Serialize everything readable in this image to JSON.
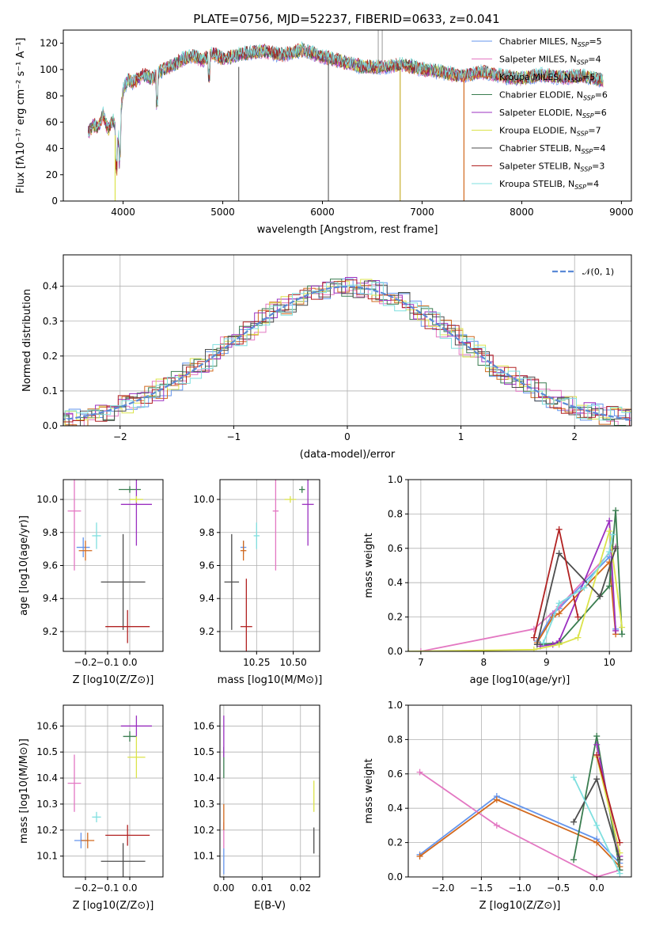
{
  "title": "PLATE=0756, MJD=52237, FIBERID=0633, z=0.041",
  "colors": [
    "#6495ed",
    "#e377c2",
    "#d2691e",
    "#3a7d50",
    "#9b30c0",
    "#dbe34a",
    "#4d4d4d",
    "#b22222",
    "#7fdfdf"
  ],
  "chart_data": [
    {
      "id": "spectrum",
      "type": "line",
      "xlabel": "wavelength [Angstrom, rest frame]",
      "ylabel": "Flux [fλ10⁻¹⁷ erg cm⁻² s⁻¹ A⁻¹]",
      "xlim": [
        3400,
        9100
      ],
      "ylim": [
        0,
        130
      ],
      "xticks": [
        4000,
        5000,
        6000,
        7000,
        8000,
        9000
      ],
      "yticks": [
        0,
        20,
        40,
        60,
        80,
        100,
        120
      ],
      "legend_position": "top-right",
      "series": [
        {
          "name": "Chabrier MILES, N_SSP=5"
        },
        {
          "name": "Salpeter MILES, N_SSP=4"
        },
        {
          "name": "Kroupa MILES, N_SSP=5"
        },
        {
          "name": "Chabrier ELODIE, N_SSP=6"
        },
        {
          "name": "Salpeter ELODIE, N_SSP=6"
        },
        {
          "name": "Kroupa ELODIE, N_SSP=7"
        },
        {
          "name": "Chabrier STELIB, N_SSP=4"
        },
        {
          "name": "Salpeter STELIB, N_SSP=3"
        },
        {
          "name": "Kroupa STELIB, N_SSP=4"
        }
      ],
      "envelope": {
        "x": [
          3650,
          3700,
          3750,
          3800,
          3850,
          3900,
          3950,
          4000,
          4050,
          4100,
          4200,
          4300,
          4400,
          4500,
          4600,
          4700,
          4800,
          4900,
          5000,
          5200,
          5400,
          5600,
          5800,
          6000,
          6200,
          6400,
          6600,
          6800,
          7000,
          7200,
          7400,
          7600,
          7800,
          8000,
          8200,
          8400,
          8600,
          8800
        ],
        "y": [
          52,
          58,
          56,
          66,
          54,
          62,
          45,
          85,
          92,
          90,
          96,
          93,
          100,
          103,
          108,
          110,
          107,
          112,
          108,
          112,
          114,
          111,
          115,
          110,
          106,
          102,
          102,
          104,
          100,
          98,
          95,
          98,
          95,
          93,
          96,
          94,
          95,
          92
        ]
      },
      "spikes": [
        {
          "x": 3920,
          "ymin": 0,
          "ymax": 50
        },
        {
          "x": 5160,
          "ymin": 0,
          "ymax": 102
        },
        {
          "x": 6060,
          "ymin": 0,
          "ymax": 108
        },
        {
          "x": 6780,
          "ymin": 0,
          "ymax": 100
        },
        {
          "x": 7420,
          "ymin": 0,
          "ymax": 97
        },
        {
          "x": 6560,
          "ymin": 100,
          "ymax": 130
        },
        {
          "x": 6600,
          "ymin": 100,
          "ymax": 130
        }
      ]
    },
    {
      "id": "residuals",
      "type": "histogram",
      "xlabel": "(data-model)/error",
      "ylabel": "Normed distribution",
      "xlim": [
        -2.5,
        2.5
      ],
      "ylim": [
        0,
        0.49
      ],
      "xticks": [
        -2,
        -1,
        0,
        1,
        2
      ],
      "yticks": [
        0.0,
        0.1,
        0.2,
        0.3,
        0.4
      ],
      "grid": true,
      "legend": "𝒩(0, 1)",
      "legend_position": "top-right",
      "bin_width": 0.1
    },
    {
      "id": "age-vs-Z",
      "type": "errorbar",
      "xlabel": "Z [log10(Z/Z⊙)]",
      "ylabel": "age  [log10(age/yr)]",
      "xlim": [
        -0.3,
        0.15
      ],
      "ylim": [
        9.08,
        10.12
      ],
      "xticks": [
        -0.2,
        -0.1,
        0.0
      ],
      "yticks": [
        9.2,
        9.4,
        9.6,
        9.8,
        10.0
      ],
      "grid": true,
      "points": [
        {
          "x": -0.21,
          "y": 9.71,
          "xerr": 0.03,
          "yerr": 0.06
        },
        {
          "x": -0.25,
          "y": 9.93,
          "xerr": 0.03,
          "yerr": 0.36
        },
        {
          "x": -0.2,
          "y": 9.69,
          "xerr": 0.03,
          "yerr": 0.06
        },
        {
          "x": -0.0,
          "y": 10.06,
          "xerr": 0.05,
          "yerr": 0.02
        },
        {
          "x": 0.03,
          "y": 9.97,
          "xerr": 0.07,
          "yerr": 0.25
        },
        {
          "x": 0.03,
          "y": 10.0,
          "xerr": 0.03,
          "yerr": 0.02
        },
        {
          "x": -0.03,
          "y": 9.5,
          "xerr": 0.1,
          "yerr": 0.29
        },
        {
          "x": -0.01,
          "y": 9.23,
          "xerr": 0.1,
          "yerr": 0.1
        },
        {
          "x": -0.15,
          "y": 9.78,
          "xerr": 0.02,
          "yerr": 0.08
        }
      ]
    },
    {
      "id": "age-vs-mass",
      "type": "errorbar",
      "xlabel": "mass [log10(M/M⊙)]",
      "ylabel": "",
      "xlim": [
        10.0,
        10.68
      ],
      "ylim": [
        9.08,
        10.12
      ],
      "xticks": [
        10.25,
        10.5
      ],
      "yticks": [
        9.2,
        9.4,
        9.6,
        9.8,
        10.0
      ],
      "grid": true,
      "points": [
        {
          "x": 10.16,
          "y": 9.71,
          "xerr": 0.02,
          "yerr": 0.04
        },
        {
          "x": 10.38,
          "y": 9.93,
          "xerr": 0.02,
          "yerr": 0.36
        },
        {
          "x": 10.16,
          "y": 9.69,
          "xerr": 0.02,
          "yerr": 0.06
        },
        {
          "x": 10.56,
          "y": 10.06,
          "xerr": 0.02,
          "yerr": 0.02
        },
        {
          "x": 10.6,
          "y": 9.97,
          "xerr": 0.04,
          "yerr": 0.25
        },
        {
          "x": 10.48,
          "y": 10.0,
          "xerr": 0.04,
          "yerr": 0.02
        },
        {
          "x": 10.08,
          "y": 9.5,
          "xerr": 0.05,
          "yerr": 0.29
        },
        {
          "x": 10.18,
          "y": 9.23,
          "xerr": 0.04,
          "yerr": 0.29
        },
        {
          "x": 10.25,
          "y": 9.78,
          "xerr": 0.02,
          "yerr": 0.08
        }
      ]
    },
    {
      "id": "mass-weight-vs-age",
      "type": "line",
      "xlabel": "age  [log10(age/yr)]",
      "ylabel": "mass weight",
      "xlim": [
        6.8,
        10.35
      ],
      "ylim": [
        0,
        1.0
      ],
      "xticks": [
        7,
        8,
        9,
        10
      ],
      "yticks": [
        0.0,
        0.2,
        0.4,
        0.6,
        0.8,
        1.0
      ],
      "grid": true,
      "series": [
        {
          "x": [
            8.85,
            9.1,
            9.2,
            10.0,
            10.1
          ],
          "y": [
            0.06,
            0.22,
            0.25,
            0.55,
            0.13
          ]
        },
        {
          "x": [
            7.0,
            8.8,
            9.2,
            10.1
          ],
          "y": [
            0.0,
            0.13,
            0.26,
            0.61
          ]
        },
        {
          "x": [
            8.85,
            9.1,
            9.2,
            10.0,
            10.1
          ],
          "y": [
            0.05,
            0.2,
            0.22,
            0.52,
            0.1
          ]
        },
        {
          "x": [
            8.9,
            9.2,
            10.0,
            10.1,
            10.2
          ],
          "y": [
            0.04,
            0.05,
            0.38,
            0.82,
            0.1
          ]
        },
        {
          "x": [
            8.9,
            9.1,
            9.2,
            10.0,
            10.1
          ],
          "y": [
            0.03,
            0.04,
            0.06,
            0.76,
            0.12
          ]
        },
        {
          "x": [
            6.8,
            8.8,
            9.2,
            9.5,
            10.0,
            10.2
          ],
          "y": [
            0.0,
            0.01,
            0.04,
            0.08,
            0.7,
            0.14
          ]
        },
        {
          "x": [
            8.85,
            9.2,
            9.85,
            10.1
          ],
          "y": [
            0.04,
            0.57,
            0.32,
            0.6
          ]
        },
        {
          "x": [
            8.8,
            9.2,
            9.5
          ],
          "y": [
            0.08,
            0.71,
            0.2
          ]
        },
        {
          "x": [
            8.95,
            9.2,
            9.6,
            10.0,
            10.05
          ],
          "y": [
            0.05,
            0.28,
            0.37,
            0.58,
            0.68
          ]
        }
      ]
    },
    {
      "id": "mass-vs-Z",
      "type": "errorbar",
      "xlabel": "Z [log10(Z/Z⊙)]",
      "ylabel": "mass [log10(M/M⊙)]",
      "xlim": [
        -0.3,
        0.15
      ],
      "ylim": [
        10.02,
        10.68
      ],
      "xticks": [
        -0.2,
        -0.1,
        0.0
      ],
      "yticks": [
        10.1,
        10.2,
        10.3,
        10.4,
        10.5,
        10.6
      ],
      "grid": true,
      "points": [
        {
          "x": -0.22,
          "y": 10.16,
          "xerr": 0.03,
          "yerr": 0.03
        },
        {
          "x": -0.25,
          "y": 10.38,
          "xerr": 0.03,
          "yerr": 0.11
        },
        {
          "x": -0.19,
          "y": 10.16,
          "xerr": 0.03,
          "yerr": 0.03
        },
        {
          "x": -0.0,
          "y": 10.56,
          "xerr": 0.03,
          "yerr": 0.02
        },
        {
          "x": 0.03,
          "y": 10.6,
          "xerr": 0.07,
          "yerr": 0.04
        },
        {
          "x": 0.03,
          "y": 10.48,
          "xerr": 0.04,
          "yerr": 0.08
        },
        {
          "x": -0.03,
          "y": 10.08,
          "xerr": 0.1,
          "yerr": 0.07
        },
        {
          "x": -0.01,
          "y": 10.18,
          "xerr": 0.1,
          "yerr": 0.04
        },
        {
          "x": -0.15,
          "y": 10.25,
          "xerr": 0.02,
          "yerr": 0.02
        }
      ]
    },
    {
      "id": "mass-vs-EBV",
      "type": "errorbar",
      "xlabel": "E(B-V)",
      "ylabel": "",
      "xlim": [
        -0.001,
        0.025
      ],
      "ylim": [
        10.02,
        10.68
      ],
      "xticks": [
        0.0,
        0.01,
        0.02
      ],
      "yticks": [
        10.1,
        10.2,
        10.3,
        10.4,
        10.5,
        10.6
      ],
      "grid": true,
      "points": [
        {
          "x": 0.0,
          "y": 10.08,
          "yerr": 0.05
        },
        {
          "x": 0.0,
          "y": 10.18,
          "yerr": 0.05
        },
        {
          "x": 0.0,
          "y": 10.25,
          "yerr": 0.05
        },
        {
          "x": 0.0,
          "y": 10.46,
          "yerr": 0.06
        },
        {
          "x": 0.0,
          "y": 10.56,
          "yerr": 0.08
        },
        {
          "x": 0.0235,
          "y": 10.33,
          "yerr": 0.06
        },
        {
          "x": 0.0235,
          "y": 10.16,
          "yerr": 0.05
        }
      ]
    },
    {
      "id": "mass-weight-vs-Z",
      "type": "line",
      "xlabel": "Z [log10(Z/Z⊙)]",
      "ylabel": "mass weight",
      "xlim": [
        -2.45,
        0.45
      ],
      "ylim": [
        0,
        1.0
      ],
      "xticks": [
        -2.0,
        -1.5,
        -1.0,
        -0.5,
        0.0
      ],
      "yticks": [
        0.0,
        0.2,
        0.4,
        0.6,
        0.8,
        1.0
      ],
      "grid": true,
      "series": [
        {
          "x": [
            -2.3,
            -1.3,
            0.0,
            0.3
          ],
          "y": [
            0.13,
            0.47,
            0.22,
            0.08
          ]
        },
        {
          "x": [
            -2.3,
            -1.3,
            0.0,
            0.3
          ],
          "y": [
            0.61,
            0.3,
            0.0,
            0.04
          ]
        },
        {
          "x": [
            -2.3,
            -1.3,
            0.0,
            0.3
          ],
          "y": [
            0.12,
            0.45,
            0.2,
            0.06
          ]
        },
        {
          "x": [
            -0.3,
            0.0,
            0.3
          ],
          "y": [
            0.1,
            0.82,
            0.04
          ]
        },
        {
          "x": [
            0.0,
            0.3
          ],
          "y": [
            0.77,
            0.12
          ]
        },
        {
          "x": [
            0.0,
            0.3
          ],
          "y": [
            0.7,
            0.14
          ]
        },
        {
          "x": [
            -0.3,
            0.0,
            0.3
          ],
          "y": [
            0.32,
            0.57,
            0.1
          ]
        },
        {
          "x": [
            0.0,
            0.3
          ],
          "y": [
            0.71,
            0.2
          ]
        },
        {
          "x": [
            -0.3,
            0.0,
            0.3
          ],
          "y": [
            0.58,
            0.3,
            0.02
          ]
        }
      ]
    }
  ]
}
